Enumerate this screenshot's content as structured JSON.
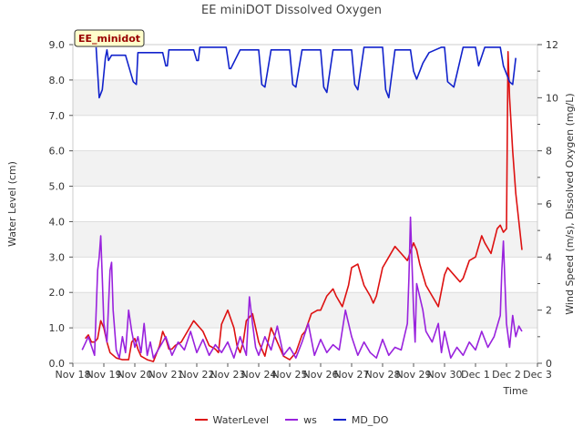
{
  "chart_data": {
    "type": "line",
    "title": "EE miniDOT Dissolved Oxygen",
    "station_label": "EE_minidot",
    "xlabel": "Time",
    "ylabel_left": "Water Level (cm)",
    "ylabel_right": "Wind Speed (m/s), Dissolved Oxygen (mg/L)",
    "x_tick_labels": [
      "Nov 18",
      "Nov 19",
      "Nov 20",
      "Nov 21",
      "Nov 22",
      "Nov 23",
      "Nov 24",
      "Nov 25",
      "Nov 26",
      "Nov 27",
      "Nov 28",
      "Nov 29",
      "Nov 30",
      "Dec 1",
      "Dec 2",
      "Dec 3"
    ],
    "xlim": [
      0,
      15
    ],
    "ylim_left": [
      0,
      9
    ],
    "ylim_right": [
      0,
      12
    ],
    "y_left_ticks": [
      "0.0",
      "1.0",
      "2.0",
      "3.0",
      "4.0",
      "5.0",
      "6.0",
      "7.0",
      "8.0",
      "9.0"
    ],
    "y_right_ticks": [
      "0",
      "2",
      "4",
      "6",
      "8",
      "10",
      "12"
    ],
    "colors": {
      "WaterLevel": "#dd1111",
      "ws": "#9922dd",
      "MD_DO": "#1122cc"
    },
    "series": [
      {
        "name": "WaterLevel",
        "axis": "left",
        "x": [
          0.4,
          0.5,
          0.6,
          0.7,
          0.8,
          0.9,
          1.0,
          1.1,
          1.2,
          1.4,
          1.6,
          1.8,
          1.9,
          2.0,
          2.1,
          2.2,
          2.4,
          2.6,
          2.8,
          2.9,
          3.0,
          3.1,
          3.2,
          3.3,
          3.5,
          3.7,
          3.9,
          4.0,
          4.1,
          4.2,
          4.4,
          4.6,
          4.7,
          4.8,
          5.0,
          5.2,
          5.3,
          5.4,
          5.5,
          5.6,
          5.8,
          5.9,
          6.0,
          6.2,
          6.4,
          6.6,
          6.8,
          7.0,
          7.2,
          7.4,
          7.5,
          7.7,
          7.9,
          8.0,
          8.2,
          8.4,
          8.5,
          8.7,
          8.9,
          9.0,
          9.2,
          9.3,
          9.4,
          9.6,
          9.7,
          9.8,
          10.0,
          10.2,
          10.4,
          10.6,
          10.8,
          11.0,
          11.1,
          11.2,
          11.3,
          11.4,
          11.6,
          11.8,
          12.0,
          12.1,
          12.3,
          12.5,
          12.6,
          12.8,
          13.0,
          13.2,
          13.3,
          13.5,
          13.7,
          13.8,
          13.9,
          14.0,
          14.05,
          14.1,
          14.2,
          14.3,
          14.4,
          14.5
        ],
        "values": [
          0.7,
          0.8,
          0.6,
          0.6,
          0.7,
          1.2,
          1.0,
          0.6,
          0.3,
          0.15,
          0.1,
          0.1,
          0.6,
          0.7,
          0.4,
          0.2,
          0.1,
          0.05,
          0.5,
          0.9,
          0.7,
          0.4,
          0.4,
          0.5,
          0.6,
          0.9,
          1.2,
          1.1,
          1.0,
          0.9,
          0.5,
          0.4,
          0.3,
          1.1,
          1.5,
          1.0,
          0.5,
          0.3,
          0.6,
          1.2,
          1.4,
          1.0,
          0.6,
          0.2,
          1.0,
          0.6,
          0.2,
          0.1,
          0.3,
          0.8,
          0.9,
          1.4,
          1.5,
          1.5,
          1.9,
          2.1,
          1.9,
          1.6,
          2.2,
          2.7,
          2.8,
          2.5,
          2.2,
          1.9,
          1.7,
          1.9,
          2.7,
          3.0,
          3.3,
          3.1,
          2.9,
          3.4,
          3.2,
          2.8,
          2.5,
          2.2,
          1.9,
          1.6,
          2.5,
          2.7,
          2.5,
          2.3,
          2.4,
          2.9,
          3.0,
          3.6,
          3.4,
          3.1,
          3.8,
          3.9,
          3.7,
          3.8,
          8.8,
          7.5,
          6.0,
          4.8,
          4.0,
          3.2
        ]
      },
      {
        "name": "ws",
        "axis": "right",
        "x": [
          0.3,
          0.5,
          0.7,
          0.8,
          0.85,
          0.9,
          0.95,
          1.0,
          1.1,
          1.2,
          1.25,
          1.3,
          1.4,
          1.5,
          1.6,
          1.7,
          1.8,
          1.9,
          2.0,
          2.1,
          2.2,
          2.3,
          2.4,
          2.5,
          2.6,
          2.8,
          3.0,
          3.2,
          3.4,
          3.6,
          3.8,
          4.0,
          4.2,
          4.4,
          4.6,
          4.8,
          5.0,
          5.2,
          5.4,
          5.6,
          5.7,
          5.8,
          5.9,
          6.0,
          6.2,
          6.4,
          6.6,
          6.8,
          7.0,
          7.2,
          7.4,
          7.6,
          7.8,
          8.0,
          8.2,
          8.4,
          8.6,
          8.8,
          9.0,
          9.2,
          9.4,
          9.6,
          9.8,
          10.0,
          10.2,
          10.4,
          10.6,
          10.8,
          10.85,
          10.9,
          11.0,
          11.05,
          11.1,
          11.2,
          11.3,
          11.4,
          11.6,
          11.8,
          11.9,
          12.0,
          12.2,
          12.4,
          12.6,
          12.8,
          13.0,
          13.2,
          13.4,
          13.6,
          13.8,
          13.85,
          13.9,
          14.0,
          14.1,
          14.2,
          14.3,
          14.4,
          14.5
        ],
        "values": [
          0.5,
          1.0,
          0.3,
          3.5,
          4.0,
          4.8,
          3.2,
          1.5,
          0.8,
          3.5,
          3.8,
          2.0,
          0.5,
          0.2,
          1.0,
          0.4,
          2.0,
          1.2,
          0.6,
          1.0,
          0.4,
          1.5,
          0.3,
          0.8,
          0.2,
          0.6,
          1.0,
          0.3,
          0.8,
          0.5,
          1.2,
          0.4,
          0.9,
          0.3,
          0.7,
          0.4,
          0.8,
          0.2,
          1.0,
          0.3,
          2.5,
          1.5,
          0.6,
          0.3,
          1.0,
          0.5,
          1.4,
          0.3,
          0.6,
          0.2,
          0.8,
          1.5,
          0.3,
          0.9,
          0.4,
          0.7,
          0.5,
          2.0,
          1.0,
          0.3,
          0.8,
          0.4,
          0.2,
          0.9,
          0.3,
          0.6,
          0.5,
          1.5,
          3.2,
          5.5,
          2.0,
          0.8,
          3.0,
          2.5,
          2.0,
          1.2,
          0.8,
          1.5,
          0.4,
          1.2,
          0.2,
          0.6,
          0.3,
          0.8,
          0.5,
          1.2,
          0.6,
          1.0,
          1.8,
          3.5,
          4.6,
          1.5,
          0.6,
          1.8,
          1.0,
          1.4,
          1.2
        ]
      },
      {
        "name": "MD_DO",
        "axis": "right",
        "x": [
          0.75,
          0.85,
          0.95,
          1.05,
          1.1,
          1.15,
          1.2,
          1.25,
          1.35,
          1.5,
          1.7,
          1.95,
          2.05,
          2.1,
          2.2,
          2.4,
          2.6,
          2.9,
          3.0,
          3.05,
          3.1,
          3.3,
          3.6,
          3.9,
          4.0,
          4.05,
          4.1,
          4.4,
          4.8,
          4.95,
          5.05,
          5.1,
          5.4,
          5.8,
          6.0,
          6.1,
          6.2,
          6.4,
          6.8,
          7.0,
          7.1,
          7.2,
          7.4,
          7.8,
          8.0,
          8.1,
          8.2,
          8.4,
          8.8,
          9.0,
          9.1,
          9.2,
          9.4,
          9.8,
          10.0,
          10.1,
          10.2,
          10.4,
          10.8,
          10.9,
          11.0,
          11.1,
          11.3,
          11.5,
          11.7,
          11.9,
          12.0,
          12.1,
          12.3,
          12.6,
          12.9,
          13.0,
          13.1,
          13.3,
          13.6,
          13.8,
          13.9,
          14.0,
          14.1,
          14.2,
          14.3
        ],
        "values": [
          11.9,
          10.0,
          10.3,
          11.5,
          11.8,
          11.4,
          11.5,
          11.6,
          11.6,
          11.6,
          11.6,
          10.6,
          10.5,
          11.7,
          11.7,
          11.7,
          11.7,
          11.7,
          11.2,
          11.2,
          11.8,
          11.8,
          11.8,
          11.8,
          11.4,
          11.4,
          11.9,
          11.9,
          11.9,
          11.9,
          11.1,
          11.1,
          11.8,
          11.8,
          11.8,
          10.5,
          10.4,
          11.8,
          11.8,
          11.8,
          10.5,
          10.4,
          11.8,
          11.8,
          11.8,
          10.4,
          10.2,
          11.8,
          11.8,
          11.8,
          10.5,
          10.3,
          11.9,
          11.9,
          11.9,
          10.3,
          10.0,
          11.8,
          11.8,
          11.8,
          11.0,
          10.7,
          11.3,
          11.7,
          11.8,
          11.9,
          11.9,
          10.6,
          10.4,
          11.9,
          11.9,
          11.9,
          11.2,
          11.9,
          11.9,
          11.9,
          11.2,
          10.9,
          10.6,
          10.5,
          11.5
        ]
      }
    ],
    "legend": [
      "WaterLevel",
      "ws",
      "MD_DO"
    ],
    "legend_position": "bottom-center",
    "grid": true
  }
}
